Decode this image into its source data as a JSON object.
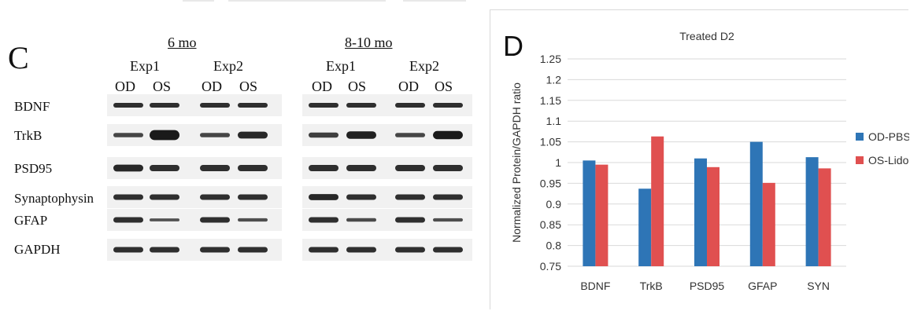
{
  "panel_c": {
    "letter": "C",
    "periods": [
      {
        "label": "6 mo",
        "experiments": [
          {
            "label": "Exp1",
            "lanes": [
              "OD",
              "OS"
            ]
          },
          {
            "label": "Exp2",
            "lanes": [
              "OD",
              "OS"
            ]
          }
        ]
      },
      {
        "label": "8-10 mo",
        "experiments": [
          {
            "label": "Exp1",
            "lanes": [
              "OD",
              "OS"
            ]
          },
          {
            "label": "Exp2",
            "lanes": [
              "OD",
              "OS"
            ]
          }
        ]
      }
    ],
    "proteins": [
      "BDNF",
      "TrkB",
      "PSD95",
      "Synaptophysin",
      "GFAP",
      "GAPDH"
    ],
    "band_color": "#1a1a1a"
  },
  "panel_d": {
    "letter": "D",
    "chart_data": {
      "type": "bar",
      "title": "Treated D2",
      "ylabel": "Normalized  Protein/GAPDH ratio",
      "xlabel": "",
      "categories": [
        "BDNF",
        "TrkB",
        "PSD95",
        "GFAP",
        "SYN"
      ],
      "series": [
        {
          "name": "OD-PBS",
          "color": "#2e75b6",
          "values": [
            1.005,
            0.937,
            1.01,
            1.05,
            1.013
          ]
        },
        {
          "name": "OS-Lido",
          "color": "#e05050",
          "values": [
            0.995,
            1.063,
            0.989,
            0.951,
            0.986
          ]
        }
      ],
      "ylim": [
        0.75,
        1.25
      ],
      "yticks": [
        "0.75",
        "0.8",
        "0.85",
        "0.9",
        "0.95",
        "1",
        "1.05",
        "1.1",
        "1.15",
        "1.2",
        "1.25"
      ],
      "grid": true,
      "legend": "right"
    }
  }
}
